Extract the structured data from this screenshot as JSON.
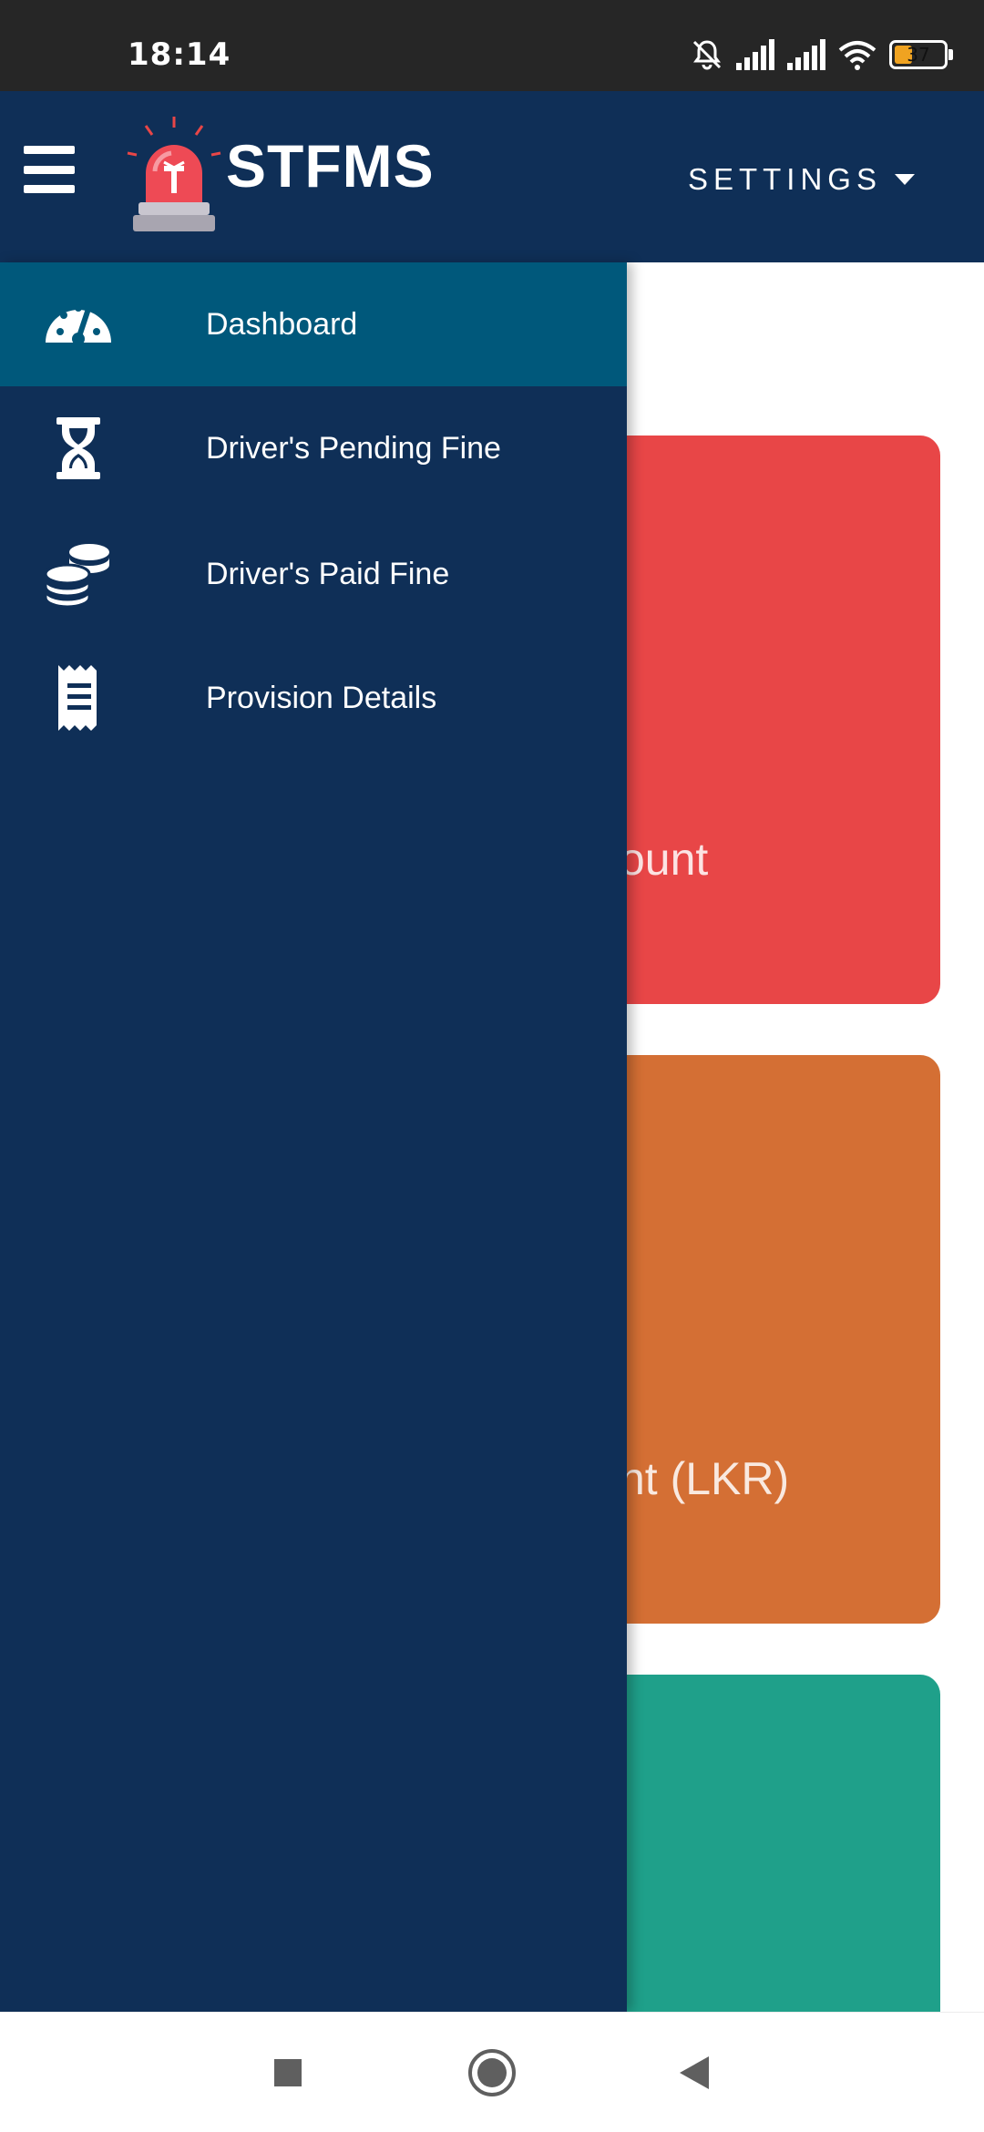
{
  "status_bar": {
    "time": "18:14",
    "battery_level": "37",
    "icons": [
      "bell-muted-icon",
      "signal-icon",
      "signal-icon",
      "wifi-icon",
      "battery-icon"
    ]
  },
  "header": {
    "brand": "STFMS",
    "settings_label": "SETTINGS",
    "icons": [
      "hamburger-menu-icon",
      "siren-logo-icon",
      "caret-down-icon"
    ]
  },
  "drawer": {
    "items": [
      {
        "label": "Dashboard",
        "icon": "dashboard-gauge-icon",
        "active": true
      },
      {
        "label": "Driver's Pending Fine",
        "icon": "hourglass-icon",
        "active": false
      },
      {
        "label": "Driver's Paid Fine",
        "icon": "coins-icon",
        "active": false
      },
      {
        "label": "Provision Details",
        "icon": "receipt-icon",
        "active": false
      }
    ]
  },
  "cards": [
    {
      "label": "ount",
      "color": "#e84647"
    },
    {
      "label": "nt (LKR)",
      "color": "#d46f34"
    },
    {
      "label": "",
      "color": "#1fa08a"
    }
  ],
  "colors": {
    "header_bg": "#0f2f57",
    "drawer_bg": "#0f2f57",
    "drawer_active": "#00587b",
    "status_bar_bg": "#262626"
  },
  "nav_bar": {
    "icons": [
      "recents-square-icon",
      "home-circle-icon",
      "back-triangle-icon"
    ]
  }
}
